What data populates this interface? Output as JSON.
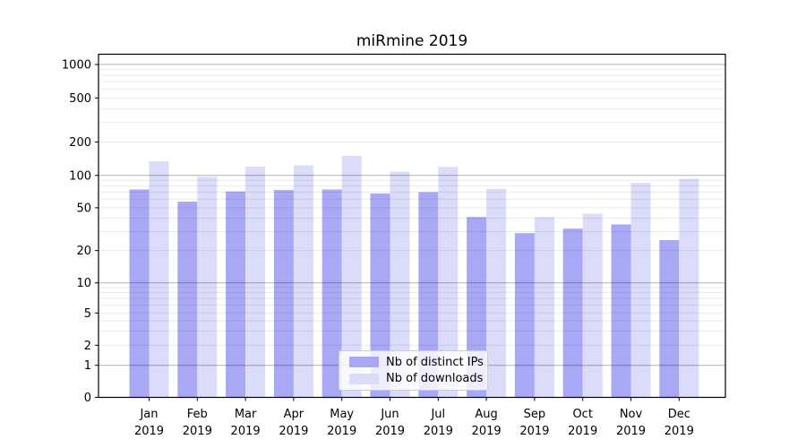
{
  "chart_data": {
    "type": "bar",
    "title": "miRmine 2019",
    "categories": [
      "Jan 2019",
      "Feb 2019",
      "Mar 2019",
      "Apr 2019",
      "May 2019",
      "Jun 2019",
      "Jul 2019",
      "Aug 2019",
      "Sep 2019",
      "Oct 2019",
      "Nov 2019",
      "Dec 2019"
    ],
    "series": [
      {
        "name": "Nb of distinct IPs",
        "color": "#a8a8f5",
        "values": [
          74,
          57,
          71,
          73,
          74,
          68,
          70,
          41,
          29,
          32,
          35,
          25
        ]
      },
      {
        "name": "Nb of downloads",
        "color": "#dbdbfa",
        "values": [
          134,
          97,
          120,
          123,
          150,
          108,
          119,
          75,
          41,
          44,
          85,
          93
        ]
      }
    ],
    "xlabel": "",
    "ylabel": "",
    "yscale": "log-with-zero",
    "yticks": [
      0,
      1,
      2,
      5,
      10,
      20,
      50,
      100,
      200,
      500,
      1000
    ],
    "ylim": [
      0,
      1240
    ],
    "grid": true,
    "legend_position": "lower center"
  },
  "colors": {
    "major_grid": "rgba(0,0,0,0.30)",
    "minor_grid": "rgba(0,0,0,0.08)",
    "axis": "#000000",
    "text": "#000000"
  }
}
